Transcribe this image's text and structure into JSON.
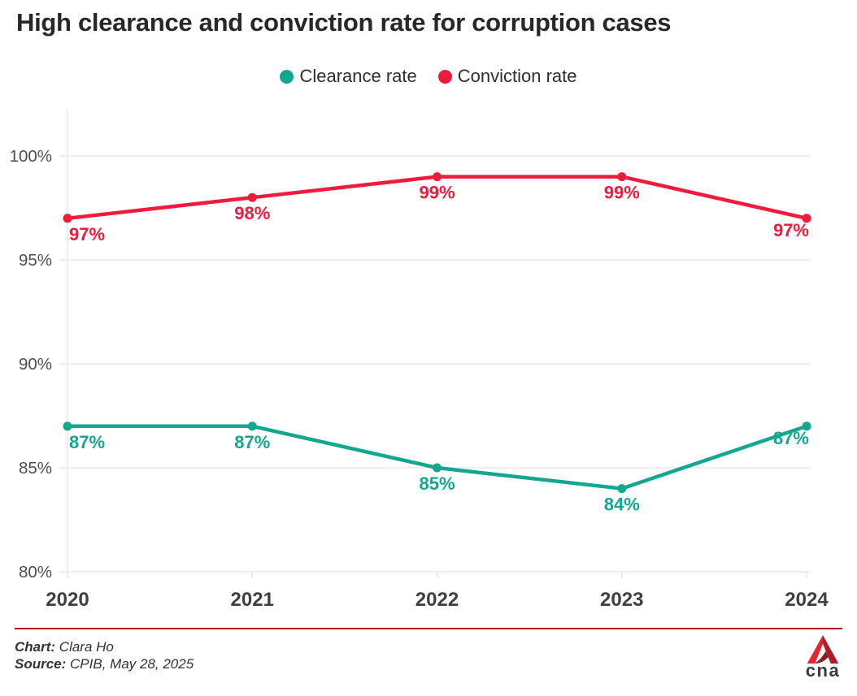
{
  "header": {
    "title": "High clearance and conviction rate for corruption cases"
  },
  "chart_data": {
    "type": "line",
    "x": [
      "2020",
      "2021",
      "2022",
      "2023",
      "2024"
    ],
    "series": [
      {
        "name": "Clearance rate",
        "color": "#12a78e",
        "values": [
          87,
          87,
          85,
          84,
          87
        ],
        "labels": [
          "87%",
          "87%",
          "85%",
          "84%",
          "87%"
        ]
      },
      {
        "name": "Conviction rate",
        "color": "#ef1a3c",
        "values": [
          97,
          98,
          99,
          99,
          97
        ],
        "labels": [
          "97%",
          "98%",
          "99%",
          "99%",
          "97%"
        ]
      }
    ],
    "yticks": [
      {
        "value": 100,
        "label": "100%"
      },
      {
        "value": 95,
        "label": "95%"
      },
      {
        "value": 90,
        "label": "90%"
      },
      {
        "value": 85,
        "label": "85%"
      },
      {
        "value": 80,
        "label": "80%"
      }
    ],
    "ylim": [
      80,
      102.5
    ],
    "xlabel": "",
    "ylabel": "",
    "grid": "horizontal",
    "legend_position": "top"
  },
  "footer": {
    "credit_label": "Chart:",
    "credit_value": "Clara Ho",
    "source_label": "Source:",
    "source_value": "CPIB, May 28, 2025",
    "logo_text": "cna"
  },
  "style": {
    "grid_color": "#e4e4e4",
    "ytick_color": "#4f4f4f",
    "xtick_color": "#3f3f3f",
    "divider_color": "#b51e23"
  }
}
